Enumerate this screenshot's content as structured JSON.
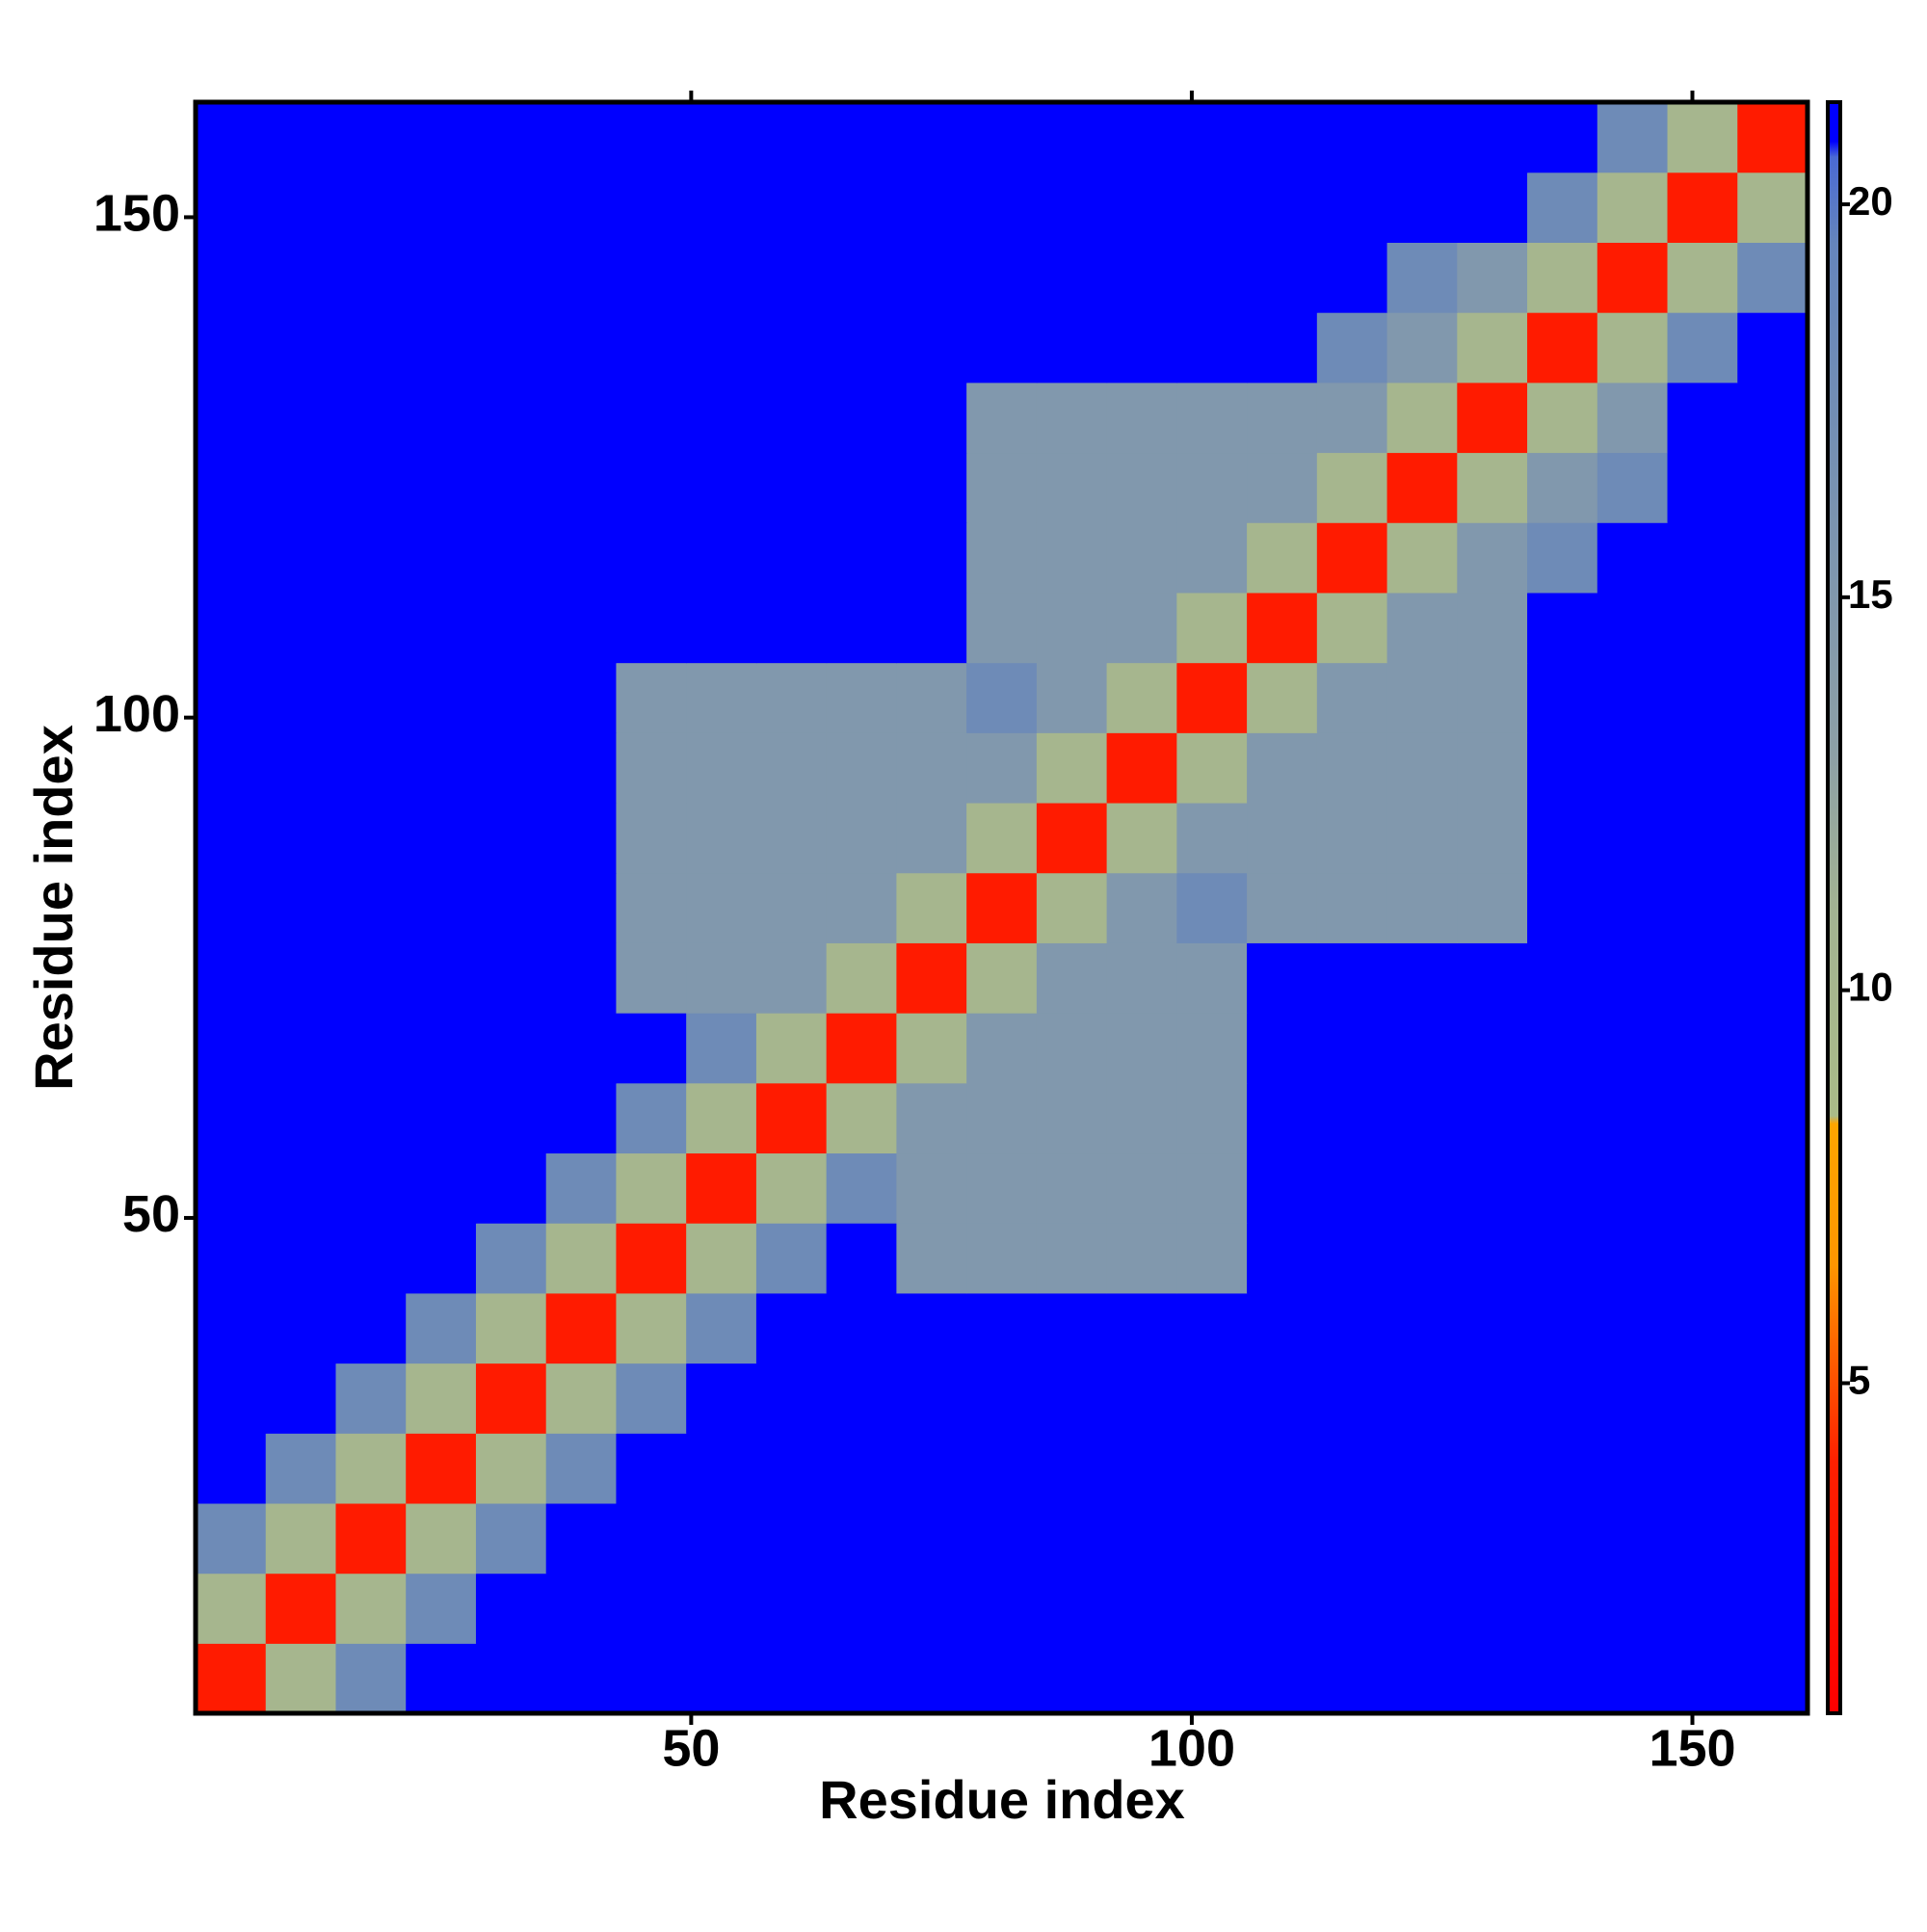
{
  "chart_data": {
    "type": "heatmap",
    "xlabel": "Residue index",
    "ylabel": "Residue index",
    "x": [
      4,
      11,
      18,
      25,
      32,
      39,
      46,
      53,
      60,
      67,
      74,
      81,
      88,
      95,
      102,
      109,
      116,
      123,
      130,
      137,
      144,
      151,
      158
    ],
    "y": [
      4,
      11,
      18,
      25,
      32,
      39,
      46,
      53,
      60,
      67,
      74,
      81,
      88,
      95,
      102,
      109,
      116,
      123,
      130,
      137,
      144,
      151,
      158
    ],
    "xlim": [
      0.5,
      161.5
    ],
    "ylim": [
      0.5,
      161.5
    ],
    "xticks": [
      50,
      100,
      150
    ],
    "yticks": [
      50,
      100,
      150
    ],
    "zlim": [
      0.8,
      21.3
    ],
    "zticks": [
      5,
      10,
      15,
      20
    ],
    "colormap": [
      [
        0.8,
        "#ff0000"
      ],
      [
        4,
        "#ff2000"
      ],
      [
        6.5,
        "#ff9500"
      ],
      [
        8.3,
        "#ffa500"
      ],
      [
        8.4,
        "#aabb88"
      ],
      [
        11,
        "#a3b392"
      ],
      [
        13,
        "#8da0a6"
      ],
      [
        19.5,
        "#6585bc"
      ],
      [
        20.6,
        "#4a6ad4"
      ],
      [
        20.8,
        "#0000ff"
      ],
      [
        21.3,
        "#0000ff"
      ]
    ],
    "z": [
      [
        3.5,
        10,
        18,
        21,
        21,
        21,
        21,
        21,
        21,
        21,
        21,
        21,
        21,
        21,
        21,
        21,
        21,
        21,
        21,
        21,
        21,
        21,
        21
      ],
      [
        10,
        3.5,
        10,
        18,
        21,
        21,
        21,
        21,
        21,
        21,
        21,
        21,
        21,
        21,
        21,
        21,
        21,
        21,
        21,
        21,
        21,
        21,
        21
      ],
      [
        18,
        10,
        3.5,
        10,
        18,
        21,
        21,
        21,
        21,
        21,
        21,
        21,
        21,
        21,
        21,
        21,
        21,
        21,
        21,
        21,
        21,
        21,
        21
      ],
      [
        21,
        18,
        10,
        3.5,
        10,
        18,
        21,
        21,
        21,
        21,
        21,
        21,
        21,
        21,
        21,
        21,
        21,
        21,
        21,
        21,
        21,
        21,
        21
      ],
      [
        21,
        21,
        18,
        10,
        3.5,
        10,
        18,
        21,
        21,
        21,
        21,
        21,
        21,
        21,
        21,
        21,
        21,
        21,
        21,
        21,
        21,
        21,
        21
      ],
      [
        21,
        21,
        21,
        18,
        10,
        3.5,
        10,
        18,
        21,
        21,
        21,
        21,
        21,
        21,
        21,
        21,
        21,
        21,
        21,
        21,
        21,
        21,
        21
      ],
      [
        21,
        21,
        21,
        21,
        18,
        10,
        3.5,
        10,
        18,
        21,
        15,
        15,
        15,
        15,
        15,
        21,
        21,
        21,
        21,
        21,
        21,
        21,
        21
      ],
      [
        21,
        21,
        21,
        21,
        21,
        18,
        10,
        3.5,
        10,
        18,
        15,
        15,
        15,
        15,
        15,
        21,
        21,
        21,
        21,
        21,
        21,
        21,
        21
      ],
      [
        21,
        21,
        21,
        21,
        21,
        21,
        18,
        10,
        3.5,
        10,
        15,
        15,
        15,
        15,
        15,
        21,
        21,
        21,
        21,
        21,
        21,
        21,
        21
      ],
      [
        21,
        21,
        21,
        21,
        21,
        21,
        21,
        18,
        10,
        3.5,
        10,
        15,
        15,
        15,
        15,
        21,
        21,
        21,
        21,
        21,
        21,
        21,
        21
      ],
      [
        21,
        21,
        21,
        21,
        21,
        21,
        15,
        15,
        15,
        10,
        3.5,
        10,
        15,
        15,
        15,
        21,
        21,
        21,
        21,
        21,
        21,
        21,
        21
      ],
      [
        21,
        21,
        21,
        21,
        21,
        21,
        15,
        15,
        15,
        15,
        10,
        3.5,
        10,
        15,
        18,
        15,
        15,
        15,
        15,
        21,
        21,
        21,
        21
      ],
      [
        21,
        21,
        21,
        21,
        21,
        21,
        15,
        15,
        15,
        15,
        15,
        10,
        3.5,
        10,
        15,
        15,
        15,
        15,
        15,
        21,
        21,
        21,
        21
      ],
      [
        21,
        21,
        21,
        21,
        21,
        21,
        15,
        15,
        15,
        15,
        15,
        15,
        10,
        3.5,
        10,
        15,
        15,
        15,
        15,
        21,
        21,
        21,
        21
      ],
      [
        21,
        21,
        21,
        21,
        21,
        21,
        15,
        15,
        15,
        15,
        15,
        18,
        15,
        10,
        3.5,
        10,
        15,
        15,
        15,
        21,
        21,
        21,
        21
      ],
      [
        21,
        21,
        21,
        21,
        21,
        21,
        21,
        21,
        21,
        21,
        21,
        15,
        15,
        15,
        10,
        3.5,
        10,
        15,
        15,
        21,
        21,
        21,
        21
      ],
      [
        21,
        21,
        21,
        21,
        21,
        21,
        21,
        21,
        21,
        21,
        21,
        15,
        15,
        15,
        15,
        10,
        3.5,
        10,
        15,
        18,
        21,
        21,
        21
      ],
      [
        21,
        21,
        21,
        21,
        21,
        21,
        21,
        21,
        21,
        21,
        21,
        15,
        15,
        15,
        15,
        15,
        10,
        3.5,
        10,
        15,
        18,
        21,
        21
      ],
      [
        21,
        21,
        21,
        21,
        21,
        21,
        21,
        21,
        21,
        21,
        21,
        15,
        15,
        15,
        15,
        15,
        15,
        10,
        3.5,
        10,
        15,
        21,
        21
      ],
      [
        21,
        21,
        21,
        21,
        21,
        21,
        21,
        21,
        21,
        21,
        21,
        21,
        21,
        21,
        21,
        21,
        18,
        15,
        10,
        3.5,
        10,
        18,
        21
      ],
      [
        21,
        21,
        21,
        21,
        21,
        21,
        21,
        21,
        21,
        21,
        21,
        21,
        21,
        21,
        21,
        21,
        21,
        18,
        15,
        10,
        3.5,
        10,
        18
      ],
      [
        21,
        21,
        21,
        21,
        21,
        21,
        21,
        21,
        21,
        21,
        21,
        21,
        21,
        21,
        21,
        21,
        21,
        21,
        21,
        18,
        10,
        3.5,
        10
      ],
      [
        21,
        21,
        21,
        21,
        21,
        21,
        21,
        21,
        21,
        21,
        21,
        21,
        21,
        21,
        21,
        21,
        21,
        21,
        21,
        21,
        18,
        10,
        3.5
      ]
    ]
  }
}
